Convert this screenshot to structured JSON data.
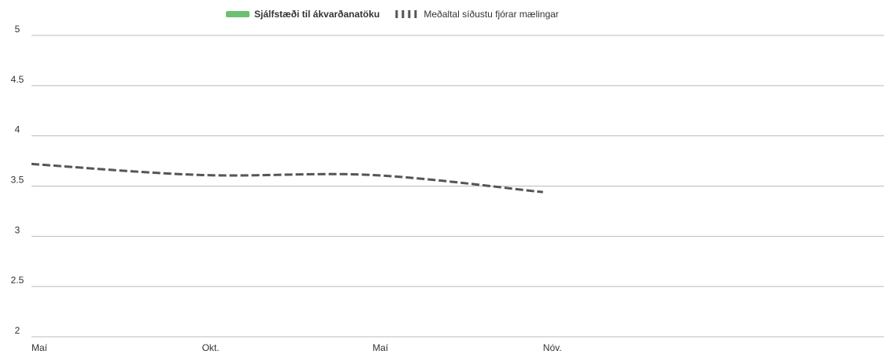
{
  "chart_data": {
    "type": "line",
    "categories": [
      "Maí",
      "Okt.",
      "Maí",
      "Nóv.",
      null
    ],
    "series": [
      {
        "name": "Sjálfstæði til ákvarðanatöku",
        "color": "#6cc070",
        "values": [
          null,
          null,
          null,
          null,
          null
        ]
      },
      {
        "name": "Meðaltal síðustu fjórar mælingar",
        "color": "#555555",
        "dashed": true,
        "values": [
          3.72,
          3.61,
          3.61,
          3.44,
          null
        ]
      }
    ],
    "ylim": [
      2,
      5
    ],
    "yticks": [
      2,
      2.5,
      3,
      3.5,
      4,
      4.5,
      5
    ],
    "grid": true,
    "legend": "top"
  }
}
